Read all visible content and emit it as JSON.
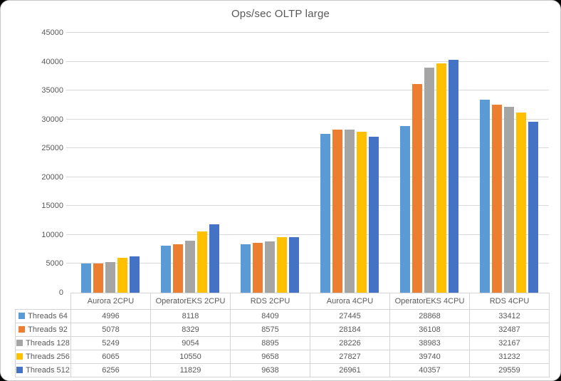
{
  "window": {
    "surface_color": "#ffffff",
    "frame_border_color": "#c9c9c9",
    "outside_color": "#000000"
  },
  "chart_data": {
    "type": "bar",
    "title": "Ops/sec OLTP large",
    "categories": [
      "Aurora 2CPU",
      "OperatorEKS 2CPU",
      "RDS 2CPU",
      "Aurora 4CPU",
      "OperatorEKS 4CPU",
      "RDS 4CPU"
    ],
    "series": [
      {
        "name": "Threads 64",
        "color": "#5B9BD5",
        "values": [
          4996,
          8118,
          8409,
          27445,
          28868,
          33412
        ]
      },
      {
        "name": "Threads 92",
        "color": "#ED7D31",
        "values": [
          5078,
          8329,
          8575,
          28184,
          36108,
          32487
        ]
      },
      {
        "name": "Threads 128",
        "color": "#A5A5A5",
        "values": [
          5249,
          9054,
          8895,
          28226,
          38983,
          32167
        ]
      },
      {
        "name": "Threads 256",
        "color": "#FFC000",
        "values": [
          6065,
          10550,
          9658,
          27827,
          39740,
          31232
        ]
      },
      {
        "name": "Threads 512",
        "color": "#4472C4",
        "values": [
          6256,
          11829,
          9638,
          26961,
          40357,
          29559
        ]
      }
    ],
    "ylim": [
      0,
      45000
    ],
    "ytick_step": 5000,
    "yticks": [
      "0",
      "5000",
      "10000",
      "15000",
      "20000",
      "25000",
      "30000",
      "35000",
      "40000",
      "45000"
    ],
    "grid": "horizontal",
    "legend_position": "data-table-left-column",
    "colors": {
      "gridline": "#d9d9d9",
      "axis_text": "#595959",
      "title_text": "#595959",
      "table_border": "#d4d4d4",
      "table_text": "#595959"
    }
  }
}
